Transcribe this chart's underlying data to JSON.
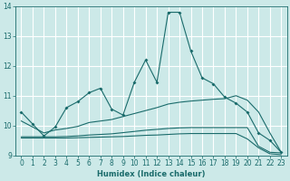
{
  "xlabel": "Humidex (Indice chaleur)",
  "xlim": [
    -0.5,
    23.5
  ],
  "ylim": [
    9,
    14
  ],
  "xticks": [
    0,
    1,
    2,
    3,
    4,
    5,
    6,
    7,
    8,
    9,
    10,
    11,
    12,
    13,
    14,
    15,
    16,
    17,
    18,
    19,
    20,
    21,
    22,
    23
  ],
  "yticks": [
    9,
    10,
    11,
    12,
    13,
    14
  ],
  "bg_color": "#cce9e8",
  "line_color": "#1a6b6b",
  "grid_color": "#ffffff",
  "line1_x": [
    0,
    1,
    2,
    3,
    4,
    5,
    6,
    7,
    8,
    9,
    10,
    11,
    12,
    13,
    14,
    15,
    16,
    17,
    18,
    19,
    20,
    21,
    22,
    23
  ],
  "line1_y": [
    10.45,
    10.05,
    9.65,
    9.95,
    10.6,
    10.8,
    11.1,
    11.25,
    10.55,
    10.35,
    11.45,
    12.2,
    11.45,
    13.8,
    13.8,
    12.5,
    11.6,
    11.4,
    10.95,
    10.75,
    10.45,
    9.75,
    9.5,
    9.1
  ],
  "line2_x": [
    0,
    1,
    2,
    3,
    4,
    5,
    6,
    7,
    8,
    9,
    10,
    11,
    12,
    13,
    14,
    15,
    16,
    17,
    18,
    19,
    20,
    21,
    22,
    23
  ],
  "line2_y": [
    10.15,
    9.95,
    9.75,
    9.85,
    9.9,
    9.97,
    10.1,
    10.15,
    10.2,
    10.3,
    10.4,
    10.5,
    10.6,
    10.72,
    10.78,
    10.82,
    10.85,
    10.88,
    10.9,
    11.0,
    10.85,
    10.45,
    9.75,
    9.1
  ],
  "line3_x": [
    0,
    1,
    2,
    3,
    4,
    5,
    6,
    7,
    8,
    9,
    10,
    11,
    12,
    13,
    14,
    15,
    16,
    17,
    18,
    19,
    20,
    21,
    22,
    23
  ],
  "line3_y": [
    9.62,
    9.62,
    9.62,
    9.62,
    9.63,
    9.65,
    9.68,
    9.7,
    9.72,
    9.76,
    9.8,
    9.84,
    9.87,
    9.9,
    9.92,
    9.93,
    9.93,
    9.93,
    9.93,
    9.93,
    9.93,
    9.3,
    9.1,
    9.08
  ],
  "line4_x": [
    0,
    1,
    2,
    3,
    4,
    5,
    6,
    7,
    8,
    9,
    10,
    11,
    12,
    13,
    14,
    15,
    16,
    17,
    18,
    19,
    20,
    21,
    22,
    23
  ],
  "line4_y": [
    9.58,
    9.58,
    9.58,
    9.58,
    9.58,
    9.59,
    9.6,
    9.61,
    9.62,
    9.63,
    9.65,
    9.67,
    9.68,
    9.7,
    9.72,
    9.73,
    9.73,
    9.73,
    9.73,
    9.73,
    9.55,
    9.25,
    9.05,
    9.02
  ]
}
